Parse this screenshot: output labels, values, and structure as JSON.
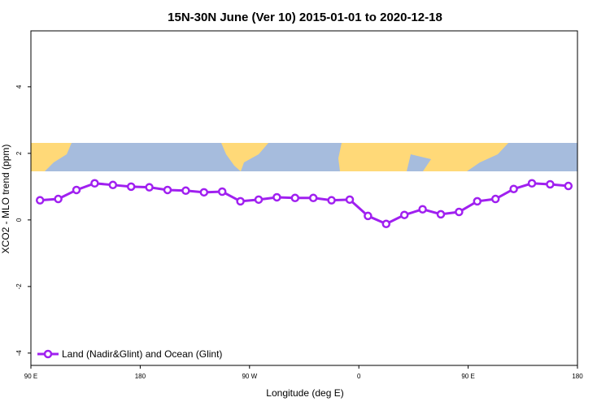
{
  "chart_data": {
    "type": "line",
    "title": "15N-30N June (Ver 10)   2015-01-01 to 2020-12-18",
    "x_label": "Longitude (deg E)",
    "y_label": "XCO2 - MLO trend (ppm)",
    "x": [
      97.5,
      112.5,
      127.5,
      142.5,
      157.5,
      172.5,
      187.5,
      202.5,
      217.5,
      232.5,
      247.5,
      262.5,
      277.5,
      292.5,
      307.5,
      322.5,
      337.5,
      352.5,
      367.5,
      382.5,
      397.5,
      412.5,
      427.5,
      442.5,
      457.5,
      472.5,
      487.5,
      502.5,
      517.5,
      532.5
    ],
    "series": [
      {
        "name": "Land (Nadir&Glint) and Ocean (Glint)",
        "color": "#a020f0",
        "values": [
          0.59,
          0.63,
          0.9,
          1.1,
          1.05,
          1.0,
          0.98,
          0.9,
          0.88,
          0.83,
          0.85,
          0.56,
          0.61,
          0.68,
          0.66,
          0.66,
          0.59,
          0.61,
          0.12,
          -0.12,
          0.15,
          0.32,
          0.17,
          0.24,
          0.56,
          0.63,
          0.93,
          1.1,
          1.07,
          1.02
        ]
      }
    ],
    "xlim": [
      90,
      540
    ],
    "xticks": [
      {
        "value": 90,
        "label": "90 E"
      },
      180,
      {
        "value": 270,
        "label": "90 W"
      },
      {
        "value": 360,
        "label": "0"
      },
      {
        "value": 450,
        "label": "90 E"
      },
      {
        "value": 540,
        "label": "180"
      }
    ],
    "ylim": [
      -4.37,
      5.68
    ],
    "yticks": [
      -4,
      -2,
      0,
      2,
      4
    ],
    "legend": "bottom-left"
  }
}
